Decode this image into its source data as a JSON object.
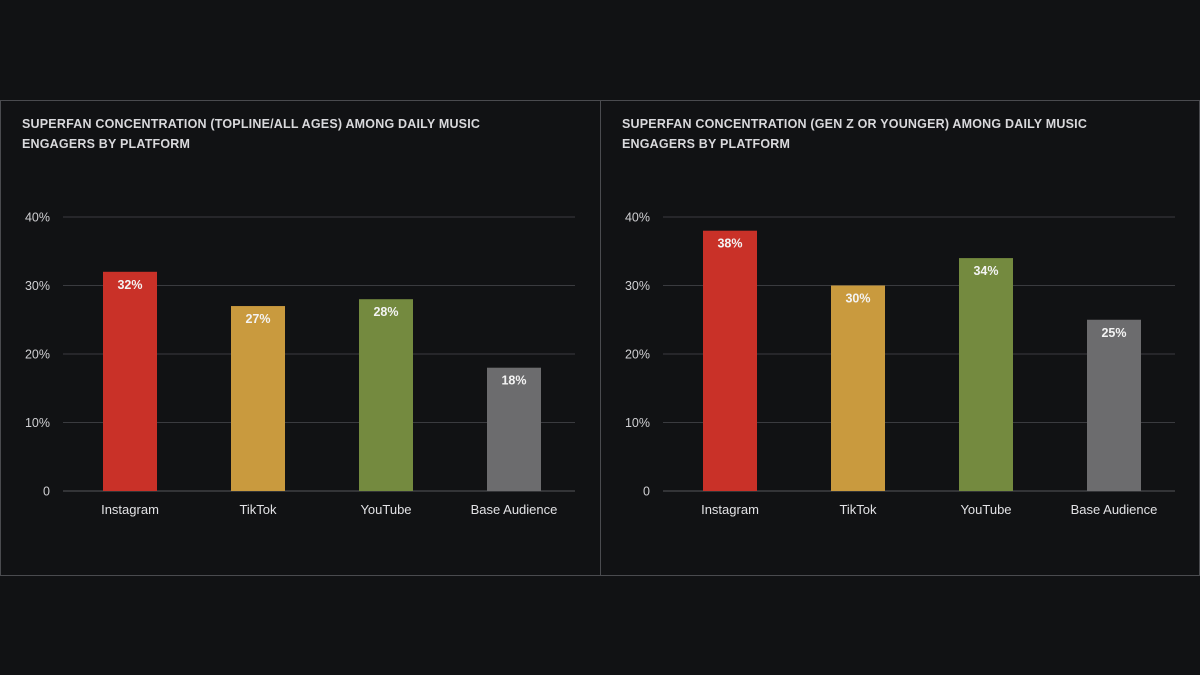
{
  "chart_data": [
    {
      "type": "bar",
      "title": "SUPERFAN CONCENTRATION (TOPLINE/ALL AGES) AMONG DAILY MUSIC ENGAGERS BY PLATFORM",
      "categories": [
        "Instagram",
        "TikTok",
        "YouTube",
        "Base Audience"
      ],
      "values": [
        32,
        27,
        28,
        18
      ],
      "value_labels": [
        "32%",
        "27%",
        "28%",
        "18%"
      ],
      "colors": [
        "#c93128",
        "#c99a3e",
        "#748a3f",
        "#6c6c6e"
      ],
      "yticks": [
        0,
        10,
        20,
        30,
        40
      ],
      "ytick_labels": [
        "0",
        "10%",
        "20%",
        "30%",
        "40%"
      ],
      "ylim": [
        0,
        40
      ],
      "grid": true,
      "xlabel": "",
      "ylabel": ""
    },
    {
      "type": "bar",
      "title": "SUPERFAN CONCENTRATION (GEN Z OR YOUNGER) AMONG DAILY MUSIC ENGAGERS BY PLATFORM",
      "categories": [
        "Instagram",
        "TikTok",
        "YouTube",
        "Base Audience"
      ],
      "values": [
        38,
        30,
        34,
        25
      ],
      "value_labels": [
        "38%",
        "30%",
        "34%",
        "25%"
      ],
      "colors": [
        "#c93128",
        "#c99a3e",
        "#748a3f",
        "#6c6c6e"
      ],
      "yticks": [
        0,
        10,
        20,
        30,
        40
      ],
      "ytick_labels": [
        "0",
        "10%",
        "20%",
        "30%",
        "40%"
      ],
      "ylim": [
        0,
        40
      ],
      "grid": true,
      "xlabel": "",
      "ylabel": ""
    }
  ]
}
